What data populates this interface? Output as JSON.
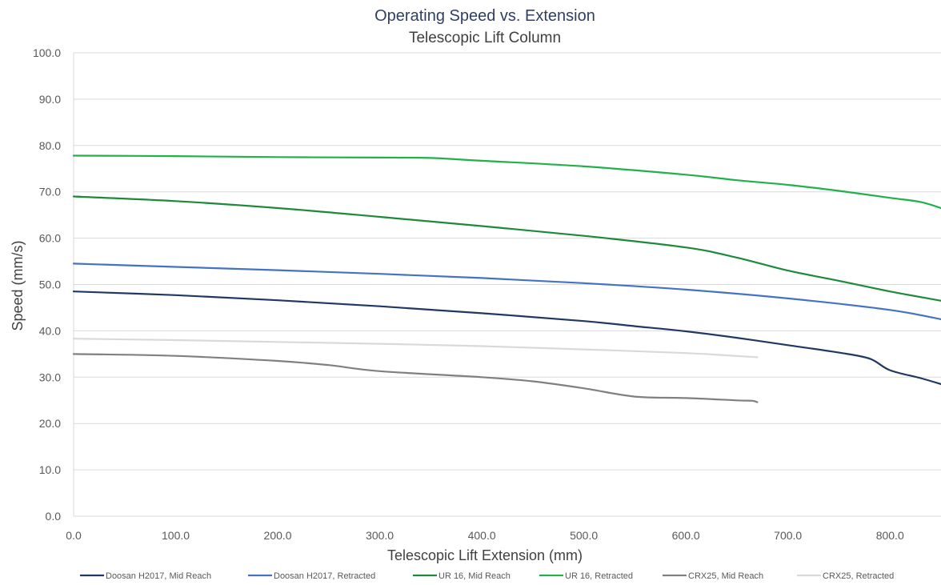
{
  "chart_data": {
    "type": "line",
    "title": "Operating Speed vs. Extension",
    "subtitle": "Telescopic Lift Column",
    "xlabel": "Telescopic Lift Extension (mm)",
    "ylabel": "Speed (mm/s)",
    "xlim": [
      0,
      850
    ],
    "ylim": [
      0,
      100
    ],
    "x_ticks": [
      "0.0",
      "100.0",
      "200.0",
      "300.0",
      "400.0",
      "500.0",
      "600.0",
      "700.0",
      "800.0"
    ],
    "y_ticks": [
      "0.0",
      "10.0",
      "20.0",
      "30.0",
      "40.0",
      "50.0",
      "60.0",
      "70.0",
      "80.0",
      "90.0",
      "100.0"
    ],
    "grid": "horizontal",
    "legend_position": "bottom",
    "series": [
      {
        "name": "Doosan H2017, Mid Reach",
        "color": "#203864",
        "points": [
          [
            0,
            48.5
          ],
          [
            100,
            47.7
          ],
          [
            200,
            46.6
          ],
          [
            300,
            45.3
          ],
          [
            400,
            43.8
          ],
          [
            500,
            42.1
          ],
          [
            550,
            41.0
          ],
          [
            600,
            39.9
          ],
          [
            650,
            38.5
          ],
          [
            700,
            36.9
          ],
          [
            750,
            35.3
          ],
          [
            780,
            34.0
          ],
          [
            800,
            31.5
          ],
          [
            830,
            29.8
          ],
          [
            850,
            28.5
          ]
        ]
      },
      {
        "name": "Doosan H2017, Retracted",
        "color": "#4472c4",
        "points": [
          [
            0,
            54.5
          ],
          [
            100,
            53.8
          ],
          [
            200,
            53.1
          ],
          [
            300,
            52.3
          ],
          [
            400,
            51.4
          ],
          [
            500,
            50.3
          ],
          [
            600,
            48.9
          ],
          [
            700,
            47.0
          ],
          [
            800,
            44.5
          ],
          [
            850,
            42.5
          ]
        ]
      },
      {
        "name": "UR 16, Mid Reach",
        "color": "#1d8a3a",
        "points": [
          [
            0,
            69.0
          ],
          [
            100,
            68.0
          ],
          [
            200,
            66.5
          ],
          [
            300,
            64.6
          ],
          [
            400,
            62.6
          ],
          [
            500,
            60.5
          ],
          [
            600,
            58.0
          ],
          [
            650,
            55.8
          ],
          [
            700,
            53.0
          ],
          [
            750,
            50.8
          ],
          [
            800,
            48.5
          ],
          [
            850,
            46.5
          ]
        ]
      },
      {
        "name": "UR 16, Retracted",
        "color": "#22b04b",
        "points": [
          [
            0,
            77.8
          ],
          [
            100,
            77.7
          ],
          [
            200,
            77.5
          ],
          [
            300,
            77.4
          ],
          [
            350,
            77.3
          ],
          [
            400,
            76.7
          ],
          [
            500,
            75.5
          ],
          [
            600,
            73.7
          ],
          [
            650,
            72.5
          ],
          [
            700,
            71.5
          ],
          [
            750,
            70.2
          ],
          [
            800,
            68.7
          ],
          [
            830,
            67.8
          ],
          [
            850,
            66.5
          ]
        ]
      },
      {
        "name": "CRX25, Mid Reach",
        "color": "#808080",
        "points": [
          [
            0,
            35.0
          ],
          [
            100,
            34.6
          ],
          [
            200,
            33.5
          ],
          [
            250,
            32.6
          ],
          [
            300,
            31.3
          ],
          [
            400,
            30.0
          ],
          [
            450,
            29.1
          ],
          [
            500,
            27.6
          ],
          [
            550,
            25.8
          ],
          [
            600,
            25.5
          ],
          [
            650,
            25.0
          ],
          [
            665,
            24.9
          ],
          [
            670,
            24.6
          ]
        ]
      },
      {
        "name": "CRX25, Retracted",
        "color": "#d9d9d9",
        "points": [
          [
            0,
            38.3
          ],
          [
            100,
            38.0
          ],
          [
            200,
            37.6
          ],
          [
            300,
            37.2
          ],
          [
            400,
            36.7
          ],
          [
            500,
            36.0
          ],
          [
            600,
            35.2
          ],
          [
            670,
            34.3
          ]
        ]
      }
    ]
  }
}
